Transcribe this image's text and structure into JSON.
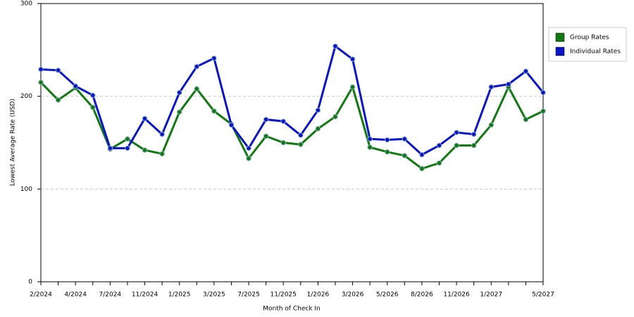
{
  "chart_data": {
    "type": "line",
    "x_label": "Month of Check In",
    "y_label": "Lowest Average Rate (USD)",
    "categories": [
      "2/2024",
      null,
      "4/2024",
      null,
      "7/2024",
      null,
      "11/2024",
      null,
      "1/2025",
      null,
      "3/2025",
      null,
      "7/2025",
      null,
      "11/2025",
      null,
      "1/2026",
      null,
      "3/2026",
      null,
      "5/2026",
      null,
      "8/2026",
      null,
      "11/2026",
      null,
      "1/2027",
      null,
      null,
      "5/2027"
    ],
    "series": [
      {
        "name": "Group Rates",
        "color": "#107a10",
        "values": [
          215,
          196,
          209,
          188,
          143,
          154,
          142,
          138,
          183,
          208,
          184,
          170,
          133,
          157,
          150,
          148,
          165,
          178,
          210,
          145,
          140,
          136,
          122,
          128,
          147,
          147,
          169,
          210,
          175,
          184
        ]
      },
      {
        "name": "Individual Rates",
        "color": "#0a14c8",
        "values": [
          229,
          228,
          211,
          201,
          144,
          144,
          176,
          159,
          204,
          232,
          241,
          169,
          144,
          175,
          173,
          158,
          185,
          254,
          240,
          154,
          153,
          154,
          137,
          147,
          161,
          159,
          210,
          213,
          227,
          204
        ]
      }
    ],
    "ylim": [
      0,
      300
    ],
    "yticks": [
      0,
      100,
      200,
      300
    ],
    "grid": true,
    "legend": "right"
  }
}
